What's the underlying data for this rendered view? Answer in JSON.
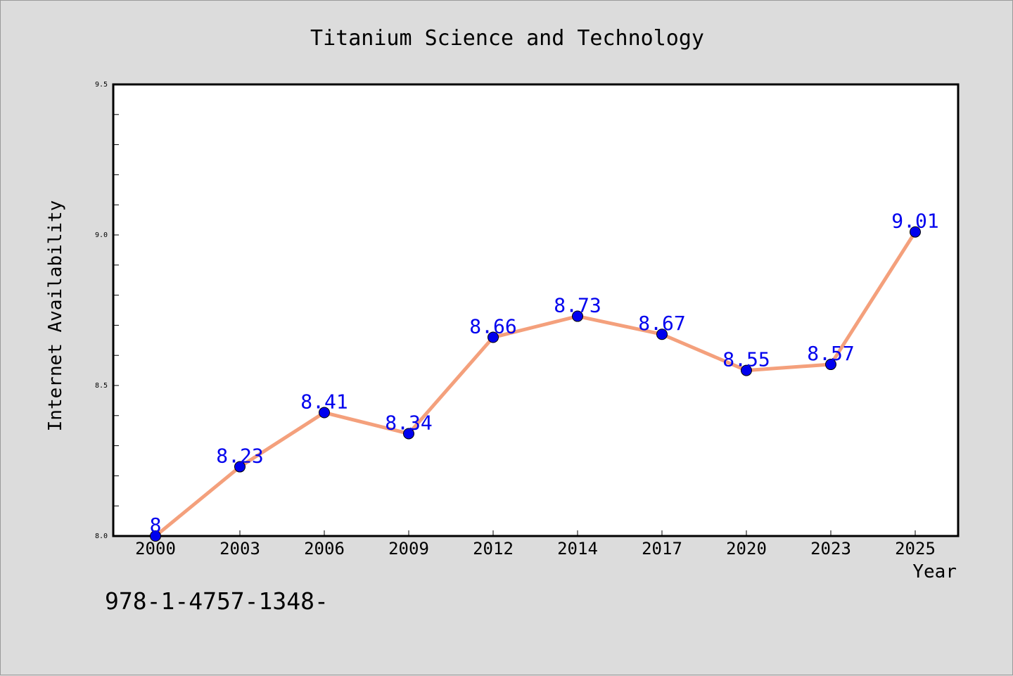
{
  "chart_data": {
    "type": "line",
    "title": "Titanium Science and Technology",
    "xlabel": "Year",
    "ylabel": "Internet Availability",
    "categories": [
      "2000",
      "2003",
      "2006",
      "2009",
      "2012",
      "2014",
      "2017",
      "2020",
      "2023",
      "2025"
    ],
    "series": [
      {
        "values": [
          8,
          8.23,
          8.41,
          8.34,
          8.66,
          8.73,
          8.67,
          8.55,
          8.57,
          9.01
        ]
      }
    ],
    "data_labels": [
      "8",
      "8.23",
      "8.41",
      "8.34",
      "8.66",
      "8.73",
      "8.67",
      "8.55",
      "8.57",
      "9.01"
    ],
    "ylim": [
      8.0,
      9.5
    ],
    "y_ticks": [
      "8.0",
      "8.5",
      "9.0",
      "9.5"
    ],
    "grid": false,
    "legend": "none",
    "colors": {
      "background": "#dcdcdc",
      "plot_area": "#ffffff",
      "line": "#f4a07c",
      "marker": "#0000ee",
      "data_label": "#0000ee"
    }
  },
  "footer_text": "978-1-4757-1348-"
}
